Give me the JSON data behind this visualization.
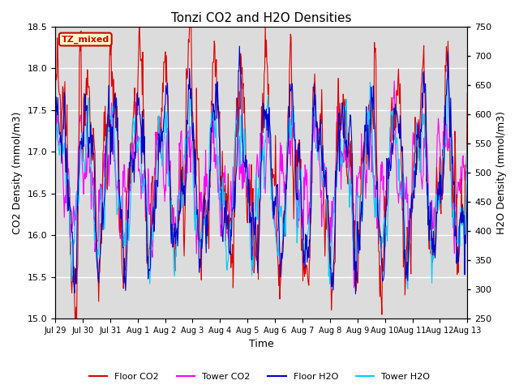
{
  "title": "Tonzi CO2 and H2O Densities",
  "xlabel": "Time",
  "ylabel_left": "CO2 Density (mmol/m3)",
  "ylabel_right": "H2O Density (mmol/m3)",
  "co2_ylim": [
    15.0,
    18.5
  ],
  "h2o_ylim": [
    250,
    750
  ],
  "co2_yticks": [
    15.0,
    15.5,
    16.0,
    16.5,
    17.0,
    17.5,
    18.0,
    18.5
  ],
  "h2o_yticks": [
    250,
    300,
    350,
    400,
    450,
    500,
    550,
    600,
    650,
    700,
    750
  ],
  "xtick_labels": [
    "Jul 29",
    "Jul 30",
    "Jul 31",
    "Aug 1",
    "Aug 2",
    "Aug 3",
    "Aug 4",
    "Aug 5",
    "Aug 6",
    "Aug 7",
    "Aug 8",
    "Aug 9",
    "Aug 10",
    "Aug 11",
    "Aug 12",
    "Aug 13"
  ],
  "annotation_text": "TZ_mixed",
  "annotation_color": "#cc0000",
  "annotation_bg": "#ffffcc",
  "bg_color": "#dcdcdc",
  "colors": {
    "floor_co2": "#dd0000",
    "tower_co2": "#ff00ff",
    "floor_h2o": "#0000cc",
    "tower_h2o": "#00ccff"
  },
  "legend_labels": [
    "Floor CO2",
    "Tower CO2",
    "Floor H2O",
    "Tower H2O"
  ],
  "seed": 12345,
  "n_days": 16,
  "pts_per_day": 48
}
